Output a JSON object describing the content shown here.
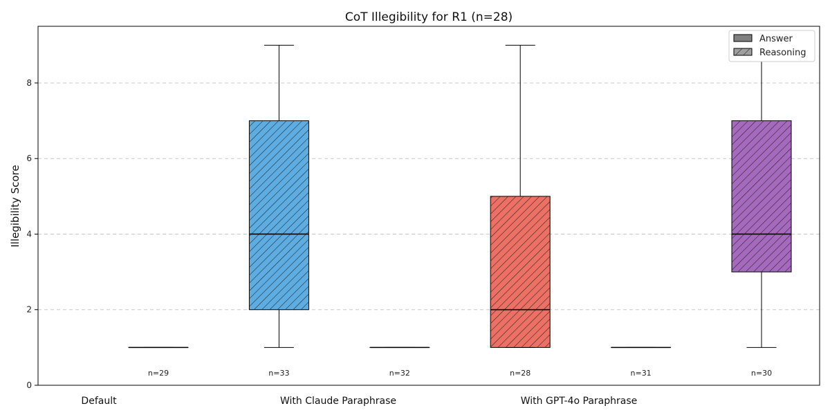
{
  "chart_data": {
    "type": "box",
    "title": "CoT Illegibility for R1 (n=28)",
    "ylabel": "Illegibility Score",
    "xlabel": "",
    "ylim": [
      0,
      9.5
    ],
    "yticks": [
      0,
      2,
      4,
      6,
      8
    ],
    "grid": "y-dashed",
    "legend": {
      "placement": "top-right",
      "entries": [
        {
          "label": "Answer",
          "style": "solid",
          "color": "#808080"
        },
        {
          "label": "Reasoning",
          "style": "hatched",
          "color": "#a0a0a0"
        }
      ]
    },
    "groups": [
      {
        "label": "Default"
      },
      {
        "label": "With Claude Paraphrase"
      },
      {
        "label": "With GPT-4o Paraphrase"
      }
    ],
    "boxes": [
      {
        "group": "Default",
        "kind": "Answer",
        "n_label": "n=29",
        "min": 1,
        "q1": 1,
        "median": 1,
        "q3": 1,
        "max": 1,
        "color": "#cccccc"
      },
      {
        "group": "Default",
        "kind": "Reasoning",
        "n_label": "n=33",
        "min": 1,
        "q1": 2,
        "median": 4,
        "q3": 7,
        "max": 9,
        "color": "#5dade2"
      },
      {
        "group": "With Claude Paraphrase",
        "kind": "Answer",
        "n_label": "n=32",
        "min": 1,
        "q1": 1,
        "median": 1,
        "q3": 1,
        "max": 1,
        "color": "#cccccc"
      },
      {
        "group": "With Claude Paraphrase",
        "kind": "Reasoning",
        "n_label": "n=28",
        "min": 1,
        "q1": 1,
        "median": 2,
        "q3": 5,
        "max": 9,
        "color": "#ec7063"
      },
      {
        "group": "With GPT-4o Paraphrase",
        "kind": "Answer",
        "n_label": "n=31",
        "min": 1,
        "q1": 1,
        "median": 1,
        "q3": 1,
        "max": 1,
        "color": "#cccccc"
      },
      {
        "group": "With GPT-4o Paraphrase",
        "kind": "Reasoning",
        "n_label": "n=30",
        "min": 1,
        "q1": 3,
        "median": 4,
        "q3": 7,
        "max": 9,
        "color": "#a569bd"
      }
    ]
  }
}
